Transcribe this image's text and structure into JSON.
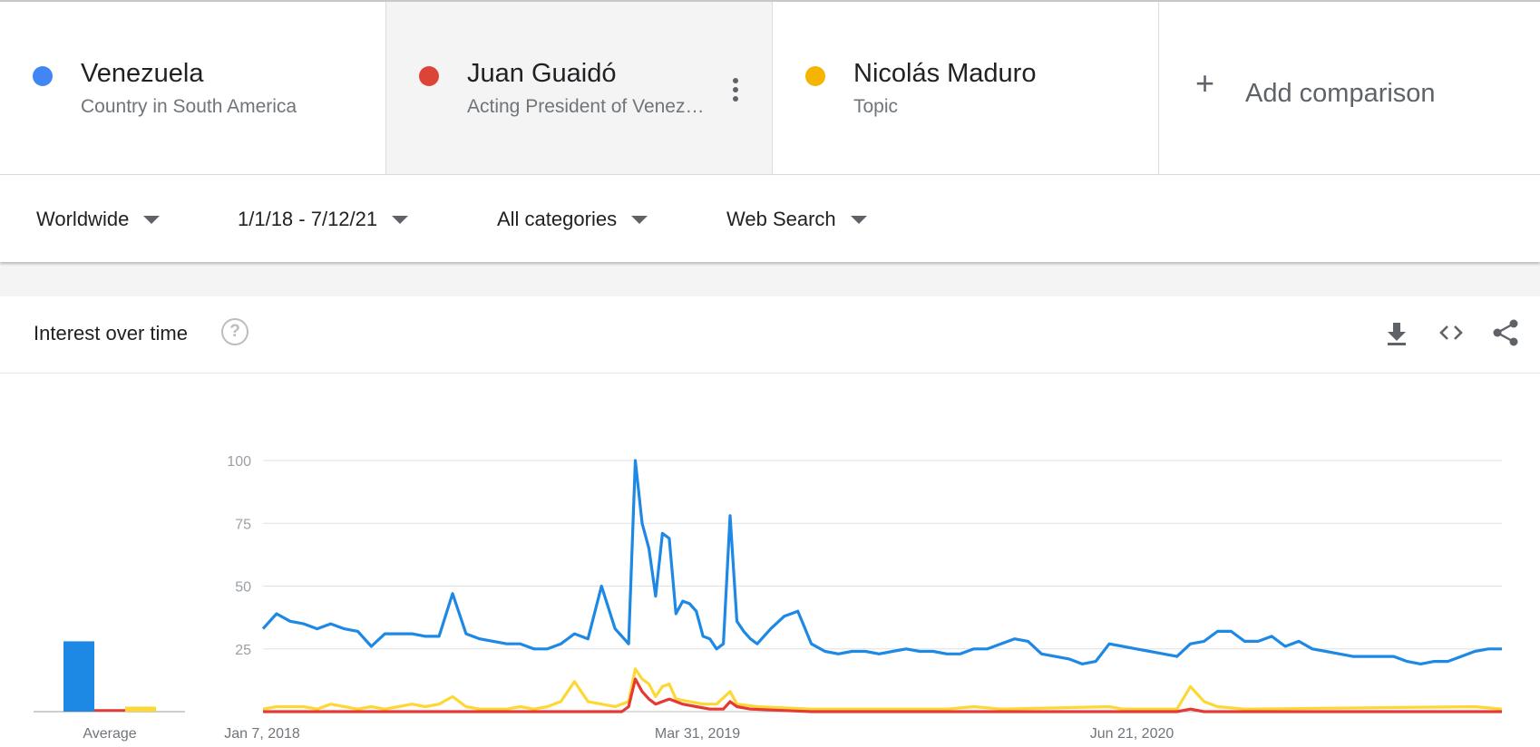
{
  "terms": [
    {
      "name": "Venezuela",
      "sub": "Country in South America",
      "color": "#4285f4"
    },
    {
      "name": "Juan Guaidó",
      "sub": "Acting President of Venezuela",
      "color": "#db4437"
    },
    {
      "name": "Nicolás Maduro",
      "sub": "Topic",
      "color": "#f4b400"
    }
  ],
  "add_comparison": {
    "plus": "+",
    "label": "Add comparison"
  },
  "filters": {
    "region": "Worldwide",
    "time": "1/1/18 - 7/12/21",
    "category": "All categories",
    "search_type": "Web Search"
  },
  "card": {
    "title": "Interest over time",
    "help": "?"
  },
  "icons": [
    "download-icon",
    "embed-icon",
    "share-icon"
  ],
  "chart_data": {
    "type": "line",
    "yticks": [
      100,
      75,
      50,
      25
    ],
    "ylim": [
      0,
      100
    ],
    "x_tick_labels": [
      "Jan 7, 2018",
      "Mar 31, 2019",
      "Jun 21, 2020"
    ],
    "x_start": "2018-01-07",
    "x_end": "2021-07-11",
    "average_label": "Average",
    "averages": [
      {
        "series": "Venezuela",
        "value": 28,
        "color": "#1e88e5"
      },
      {
        "series": "Juan Guaidó",
        "value": 1,
        "color": "#e53935"
      },
      {
        "series": "Nicolás Maduro",
        "value": 2,
        "color": "#fdd835"
      }
    ],
    "series": [
      {
        "name": "Venezuela",
        "color": "#1e88e5",
        "points": [
          [
            "2018-01-07",
            33
          ],
          [
            "2018-01-21",
            39
          ],
          [
            "2018-02-04",
            36
          ],
          [
            "2018-02-18",
            35
          ],
          [
            "2018-03-04",
            33
          ],
          [
            "2018-03-18",
            35
          ],
          [
            "2018-04-01",
            33
          ],
          [
            "2018-04-15",
            32
          ],
          [
            "2018-04-29",
            26
          ],
          [
            "2018-05-13",
            31
          ],
          [
            "2018-05-27",
            31
          ],
          [
            "2018-06-10",
            31
          ],
          [
            "2018-06-24",
            30
          ],
          [
            "2018-07-08",
            30
          ],
          [
            "2018-07-22",
            47
          ],
          [
            "2018-08-05",
            31
          ],
          [
            "2018-08-19",
            29
          ],
          [
            "2018-09-02",
            28
          ],
          [
            "2018-09-16",
            27
          ],
          [
            "2018-09-30",
            27
          ],
          [
            "2018-10-14",
            25
          ],
          [
            "2018-10-28",
            25
          ],
          [
            "2018-11-11",
            27
          ],
          [
            "2018-11-25",
            31
          ],
          [
            "2018-12-09",
            29
          ],
          [
            "2018-12-23",
            50
          ],
          [
            "2019-01-06",
            33
          ],
          [
            "2019-01-20",
            27
          ],
          [
            "2019-01-27",
            100
          ],
          [
            "2019-02-03",
            75
          ],
          [
            "2019-02-10",
            65
          ],
          [
            "2019-02-17",
            46
          ],
          [
            "2019-02-24",
            71
          ],
          [
            "2019-03-03",
            69
          ],
          [
            "2019-03-10",
            39
          ],
          [
            "2019-03-17",
            44
          ],
          [
            "2019-03-24",
            43
          ],
          [
            "2019-03-31",
            40
          ],
          [
            "2019-04-07",
            30
          ],
          [
            "2019-04-14",
            29
          ],
          [
            "2019-04-21",
            25
          ],
          [
            "2019-04-28",
            27
          ],
          [
            "2019-05-05",
            78
          ],
          [
            "2019-05-12",
            36
          ],
          [
            "2019-05-19",
            32
          ],
          [
            "2019-05-26",
            29
          ],
          [
            "2019-06-02",
            27
          ],
          [
            "2019-06-16",
            33
          ],
          [
            "2019-06-30",
            38
          ],
          [
            "2019-07-14",
            40
          ],
          [
            "2019-07-28",
            27
          ],
          [
            "2019-08-11",
            24
          ],
          [
            "2019-08-25",
            23
          ],
          [
            "2019-09-08",
            24
          ],
          [
            "2019-09-22",
            24
          ],
          [
            "2019-10-06",
            23
          ],
          [
            "2019-10-20",
            24
          ],
          [
            "2019-11-03",
            25
          ],
          [
            "2019-11-17",
            24
          ],
          [
            "2019-12-01",
            24
          ],
          [
            "2019-12-15",
            23
          ],
          [
            "2019-12-29",
            23
          ],
          [
            "2020-01-12",
            25
          ],
          [
            "2020-01-26",
            25
          ],
          [
            "2020-02-09",
            27
          ],
          [
            "2020-02-23",
            29
          ],
          [
            "2020-03-08",
            28
          ],
          [
            "2020-03-22",
            23
          ],
          [
            "2020-04-05",
            22
          ],
          [
            "2020-04-19",
            21
          ],
          [
            "2020-05-03",
            19
          ],
          [
            "2020-05-17",
            20
          ],
          [
            "2020-05-31",
            27
          ],
          [
            "2020-06-14",
            26
          ],
          [
            "2020-06-28",
            25
          ],
          [
            "2020-07-12",
            24
          ],
          [
            "2020-07-26",
            23
          ],
          [
            "2020-08-09",
            22
          ],
          [
            "2020-08-23",
            27
          ],
          [
            "2020-09-06",
            28
          ],
          [
            "2020-09-20",
            32
          ],
          [
            "2020-10-04",
            32
          ],
          [
            "2020-10-18",
            28
          ],
          [
            "2020-11-01",
            28
          ],
          [
            "2020-11-15",
            30
          ],
          [
            "2020-11-29",
            26
          ],
          [
            "2020-12-13",
            28
          ],
          [
            "2020-12-27",
            25
          ],
          [
            "2021-01-10",
            24
          ],
          [
            "2021-01-24",
            23
          ],
          [
            "2021-02-07",
            22
          ],
          [
            "2021-02-21",
            22
          ],
          [
            "2021-03-07",
            22
          ],
          [
            "2021-03-21",
            22
          ],
          [
            "2021-04-04",
            20
          ],
          [
            "2021-04-18",
            19
          ],
          [
            "2021-05-02",
            20
          ],
          [
            "2021-05-16",
            20
          ],
          [
            "2021-05-30",
            22
          ],
          [
            "2021-06-13",
            24
          ],
          [
            "2021-06-27",
            25
          ],
          [
            "2021-07-11",
            25
          ]
        ]
      },
      {
        "name": "Juan Guaidó",
        "color": "#e53935",
        "points": [
          [
            "2018-01-07",
            0
          ],
          [
            "2019-01-13",
            0
          ],
          [
            "2019-01-20",
            2
          ],
          [
            "2019-01-27",
            13
          ],
          [
            "2019-02-03",
            8
          ],
          [
            "2019-02-10",
            5
          ],
          [
            "2019-02-17",
            3
          ],
          [
            "2019-02-24",
            4
          ],
          [
            "2019-03-03",
            5
          ],
          [
            "2019-03-10",
            4
          ],
          [
            "2019-03-17",
            3
          ],
          [
            "2019-03-31",
            2
          ],
          [
            "2019-04-14",
            1
          ],
          [
            "2019-04-28",
            1
          ],
          [
            "2019-05-05",
            4
          ],
          [
            "2019-05-12",
            2
          ],
          [
            "2019-05-26",
            1
          ],
          [
            "2019-07-28",
            0
          ],
          [
            "2020-08-09",
            0
          ],
          [
            "2020-08-23",
            1
          ],
          [
            "2020-09-06",
            0
          ],
          [
            "2021-07-11",
            0
          ]
        ]
      },
      {
        "name": "Nicolás Maduro",
        "color": "#fdd835",
        "points": [
          [
            "2018-01-07",
            1
          ],
          [
            "2018-01-21",
            2
          ],
          [
            "2018-02-18",
            2
          ],
          [
            "2018-03-04",
            1
          ],
          [
            "2018-03-18",
            3
          ],
          [
            "2018-04-01",
            2
          ],
          [
            "2018-04-15",
            1
          ],
          [
            "2018-04-29",
            2
          ],
          [
            "2018-05-13",
            1
          ],
          [
            "2018-05-27",
            2
          ],
          [
            "2018-06-10",
            3
          ],
          [
            "2018-06-24",
            2
          ],
          [
            "2018-07-08",
            3
          ],
          [
            "2018-07-22",
            6
          ],
          [
            "2018-08-05",
            2
          ],
          [
            "2018-08-19",
            1
          ],
          [
            "2018-09-16",
            1
          ],
          [
            "2018-09-30",
            2
          ],
          [
            "2018-10-14",
            1
          ],
          [
            "2018-10-28",
            2
          ],
          [
            "2018-11-11",
            4
          ],
          [
            "2018-11-25",
            12
          ],
          [
            "2018-12-09",
            4
          ],
          [
            "2018-12-23",
            3
          ],
          [
            "2019-01-06",
            2
          ],
          [
            "2019-01-20",
            4
          ],
          [
            "2019-01-27",
            17
          ],
          [
            "2019-02-03",
            13
          ],
          [
            "2019-02-10",
            11
          ],
          [
            "2019-02-17",
            6
          ],
          [
            "2019-02-24",
            10
          ],
          [
            "2019-03-03",
            11
          ],
          [
            "2019-03-10",
            5
          ],
          [
            "2019-03-24",
            4
          ],
          [
            "2019-04-07",
            3
          ],
          [
            "2019-04-21",
            3
          ],
          [
            "2019-05-05",
            8
          ],
          [
            "2019-05-12",
            3
          ],
          [
            "2019-06-02",
            2
          ],
          [
            "2019-07-28",
            1
          ],
          [
            "2019-12-15",
            1
          ],
          [
            "2020-01-12",
            2
          ],
          [
            "2020-02-09",
            1
          ],
          [
            "2020-05-31",
            2
          ],
          [
            "2020-06-14",
            1
          ],
          [
            "2020-08-09",
            1
          ],
          [
            "2020-08-23",
            10
          ],
          [
            "2020-09-06",
            4
          ],
          [
            "2020-09-20",
            2
          ],
          [
            "2020-10-18",
            1
          ],
          [
            "2021-06-13",
            2
          ],
          [
            "2021-07-11",
            1
          ]
        ]
      }
    ]
  }
}
